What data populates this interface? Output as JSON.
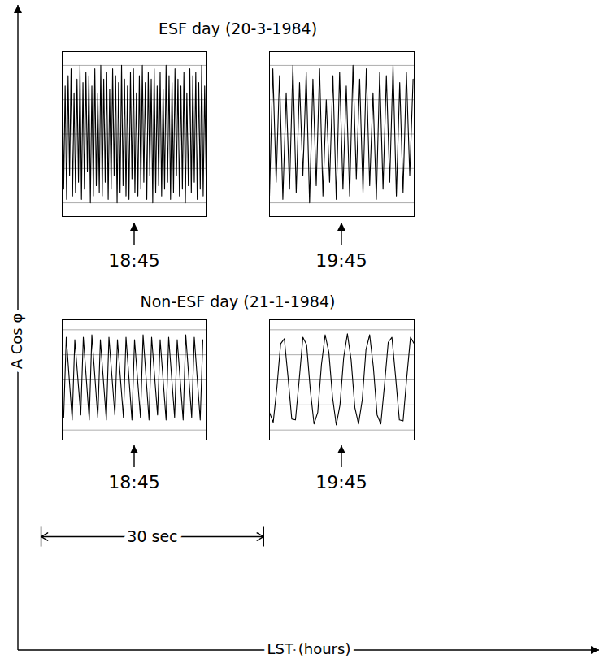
{
  "chart_data": {
    "type": "line",
    "xlabel": "LST (hours)",
    "ylabel": "A Cos φ",
    "tick_labels": false,
    "grid": true,
    "xlim": [
      0,
      19.5
    ],
    "ylim": [
      -1.2,
      1.2
    ],
    "yticks": [
      -1,
      -0.5,
      0,
      0.5,
      1
    ],
    "scale_bar": {
      "label": "30 sec",
      "value": 30
    },
    "groups": [
      {
        "title": "ESF day (20-3-1984)",
        "panels": [
          {
            "label": "18:45",
            "x": [
              0,
              0.2,
              0.4,
              0.6,
              0.8,
              1,
              1.2,
              1.4,
              1.6,
              1.8,
              2,
              2.2,
              2.4,
              2.6,
              2.8,
              3,
              3.2,
              3.4,
              3.6,
              3.8,
              4,
              4.2,
              4.4,
              4.6,
              4.8,
              5,
              5.2,
              5.4,
              5.6,
              5.8,
              6,
              6.2,
              6.4,
              6.6,
              6.8,
              7,
              7.2,
              7.4,
              7.6,
              7.8,
              8,
              8.2,
              8.4,
              8.6,
              8.8,
              9,
              9.2,
              9.4,
              9.6,
              9.8,
              10,
              10.2,
              10.4,
              10.6,
              10.8,
              11,
              11.2,
              11.4,
              11.6,
              11.8,
              12,
              12.2,
              12.4,
              12.6,
              12.8,
              13,
              13.2,
              13.4,
              13.6,
              13.8,
              14,
              14.2,
              14.4,
              14.6,
              14.8,
              15,
              15.2,
              15.4,
              15.6,
              15.8,
              16,
              16.2,
              16.4,
              16.6,
              16.8,
              17,
              17.2,
              17.4,
              17.6,
              17.8,
              18,
              18.2,
              18.4,
              18.6,
              18.8,
              19,
              19.2,
              19.4
            ],
            "values": [
              0.9,
              -0.8,
              0.7,
              -0.95,
              0.85,
              -0.6,
              0.95,
              -0.9,
              0.6,
              -0.85,
              0.8,
              -0.7,
              1.0,
              -0.95,
              0.75,
              -0.8,
              0.9,
              -0.55,
              0.85,
              -1.0,
              0.7,
              -0.9,
              0.95,
              -0.75,
              0.6,
              -0.85,
              1.0,
              -0.9,
              0.8,
              -0.7,
              0.9,
              -0.95,
              0.65,
              -0.8,
              0.95,
              -0.6,
              0.85,
              -1.0,
              0.75,
              -0.85,
              1.0,
              -0.75,
              0.8,
              -0.9,
              0.7,
              -0.95,
              0.9,
              -0.65,
              0.95,
              -0.85,
              0.6,
              -0.9,
              0.85,
              -0.8,
              1.0,
              -0.7,
              0.75,
              -0.95,
              0.9,
              -0.6,
              0.8,
              -1.0,
              0.95,
              -0.85,
              0.7,
              -0.75,
              0.9,
              -0.9,
              0.65,
              -0.8,
              1.0,
              -0.7,
              0.85,
              -0.95,
              0.75,
              -0.85,
              0.95,
              -0.6,
              0.8,
              -0.9,
              0.7,
              -0.8,
              0.9,
              -1.0,
              0.6,
              -0.75,
              0.95,
              -0.85,
              0.85,
              -0.7,
              0.9,
              -0.95,
              0.75,
              -0.8,
              1.0,
              -0.9,
              0.7,
              -0.65
            ]
          },
          {
            "label": "19:45",
            "x": [
              0,
              0.45,
              0.9,
              1.35,
              1.8,
              2.25,
              2.7,
              3.15,
              3.6,
              4.05,
              4.5,
              4.95,
              5.4,
              5.85,
              6.3,
              6.75,
              7.2,
              7.65,
              8.1,
              8.55,
              9,
              9.45,
              9.9,
              10.35,
              10.8,
              11.25,
              11.7,
              12.15,
              12.6,
              13.05,
              13.5,
              13.95,
              14.4,
              14.85,
              15.3,
              15.75,
              16.2,
              16.65,
              17.1,
              17.55,
              18,
              18.45,
              18.9,
              19.35
            ],
            "values": [
              -0.9,
              0.95,
              -0.7,
              0.85,
              -0.95,
              0.6,
              -0.8,
              1.0,
              -0.85,
              0.75,
              -0.6,
              0.9,
              -1.0,
              0.8,
              -0.75,
              0.95,
              -0.9,
              0.5,
              -0.7,
              0.85,
              -0.95,
              0.9,
              -0.8,
              0.7,
              -0.9,
              1.0,
              -0.65,
              0.8,
              -0.85,
              0.95,
              -0.75,
              0.6,
              -0.95,
              0.9,
              -0.8,
              0.85,
              -0.7,
              1.0,
              -0.9,
              0.75,
              -0.85,
              0.9,
              -0.6,
              0.8
            ]
          }
        ]
      },
      {
        "title": "Non-ESF day (21-1-1984)",
        "panels": [
          {
            "label": "18:45",
            "x": [
              0.2,
              0.55,
              1.35,
              1.7,
              2.5,
              2.85,
              3.65,
              4.0,
              4.8,
              5.15,
              5.95,
              6.3,
              7.1,
              7.45,
              8.25,
              8.6,
              9.4,
              9.75,
              10.55,
              10.9,
              11.7,
              12.05,
              12.85,
              13.2,
              14.0,
              14.35,
              15.15,
              15.5,
              16.3,
              16.65,
              17.45,
              17.8,
              18.6,
              18.95
            ],
            "values": [
              -0.75,
              0.85,
              -0.8,
              0.8,
              -0.7,
              0.85,
              -0.8,
              0.9,
              -0.75,
              0.8,
              -0.8,
              0.85,
              -0.7,
              0.8,
              -0.75,
              0.85,
              -0.8,
              0.8,
              -0.75,
              0.9,
              -0.8,
              0.85,
              -0.7,
              0.8,
              -0.8,
              0.85,
              -0.75,
              0.8,
              -0.8,
              0.9,
              -0.75,
              0.85,
              -0.8,
              0.8
            ]
          },
          {
            "label": "19:45",
            "x": [
              0,
              0.5,
              1,
              1.5,
              2,
              2.5,
              3,
              3.5,
              4,
              4.5,
              5,
              5.5,
              6,
              6.5,
              7,
              7.5,
              8,
              8.5,
              9,
              9.5,
              10,
              10.5,
              11,
              11.5,
              12,
              12.5,
              13,
              13.5,
              14,
              14.5,
              15,
              15.5,
              16,
              16.5,
              17,
              17.5,
              18,
              18.5,
              19,
              19.5
            ],
            "values": [
              -0.65,
              -0.85,
              -0.15,
              0.72,
              0.82,
              0.05,
              -0.78,
              -0.8,
              0.0,
              0.85,
              0.7,
              -0.2,
              -0.88,
              -0.65,
              0.3,
              0.9,
              0.55,
              -0.35,
              -0.9,
              -0.5,
              0.45,
              0.92,
              0.4,
              -0.55,
              -0.88,
              -0.4,
              0.6,
              0.9,
              0.25,
              -0.7,
              -0.88,
              -0.1,
              0.75,
              0.85,
              0.05,
              -0.8,
              -0.82,
              0.05,
              0.85,
              0.72
            ]
          }
        ]
      }
    ]
  }
}
